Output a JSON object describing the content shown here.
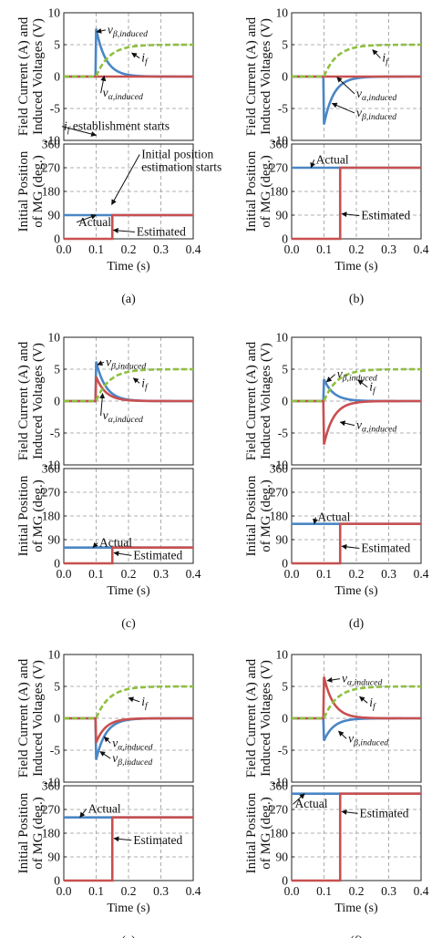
{
  "ylabel_top": [
    "Field Current (A) and",
    "Induced Voltages (V)"
  ],
  "ylabel_bottom": [
    "Initial Position",
    "of MG (deg.)"
  ],
  "xlabel": "Time (s)",
  "colors": {
    "blue": "#4a86c5",
    "red": "#c85050",
    "green": "#8fc040",
    "grid": "#999999",
    "axis": "#222222"
  },
  "chart_data": [
    {
      "label": "(a)",
      "voltage": {
        "type": "line",
        "xlim": [
          0,
          0.4
        ],
        "ylim": [
          -10,
          10
        ],
        "xticks": [
          "0.0",
          "0.1",
          "0.2",
          "0.3",
          "0.4"
        ],
        "yticks": [
          "10",
          "5",
          "0",
          "-5",
          "-10"
        ],
        "series": [
          {
            "name": "v_β,induced",
            "color": "blue",
            "peak": 7.5,
            "tau": 0.03
          },
          {
            "name": "v_α,induced",
            "color": "red",
            "peak": 0,
            "tau": 0.03
          },
          {
            "name": "i_f",
            "color": "green",
            "final": 5,
            "tau": 0.04
          }
        ],
        "annotations": [
          {
            "text": "v",
            "sub": "β,induced",
            "ax": 0.101,
            "ay": 7.0,
            "tx": 0.135,
            "ty": 7.3
          },
          {
            "text": "i",
            "sub": "f",
            "ax": 0.21,
            "ay": 3.7,
            "tx": 0.24,
            "ty": 2.9
          },
          {
            "text": "v",
            "sub": "α,induced",
            "ax": 0.125,
            "ay": 0.1,
            "tx": 0.12,
            "ty": -2.6
          },
          {
            "text": "i",
            "sub": "f",
            "extra": " establishment starts",
            "ax": 0.1,
            "ay": -9.2,
            "tx": 0.0,
            "ty": -7.8
          }
        ]
      },
      "position": {
        "type": "line",
        "xlim": [
          0,
          0.4
        ],
        "ylim": [
          0,
          360
        ],
        "xticks": [
          "0.0",
          "0.1",
          "0.2",
          "0.3",
          "0.4"
        ],
        "yticks": [
          "360",
          "270",
          "180",
          "90",
          "0"
        ],
        "actual": 90,
        "estimated": 90,
        "estimation_start": 0.15,
        "annotations": [
          {
            "text": "Actual",
            "ax": 0.1,
            "ay": 90,
            "tx": 0.045,
            "ty": 63
          },
          {
            "text": "Estimated",
            "ax": 0.153,
            "ay": 33,
            "tx": 0.225,
            "ty": 26
          },
          {
            "text": "Initial position",
            "ax": 0.148,
            "ay": 130,
            "tx": 0.24,
            "ty": 320
          },
          {
            "text": "estimation starts",
            "tx": 0.24,
            "ty": 272
          }
        ]
      }
    },
    {
      "label": "(b)",
      "voltage": {
        "type": "line",
        "xlim": [
          0,
          0.4
        ],
        "ylim": [
          -10,
          10
        ],
        "xticks": [
          "0.0",
          "0.1",
          "0.2",
          "0.3",
          "0.4"
        ],
        "yticks": [
          "10",
          "5",
          "0",
          "-5",
          "-10"
        ],
        "series": [
          {
            "name": "v_β,induced",
            "color": "blue",
            "peak": -7.5,
            "tau": 0.03
          },
          {
            "name": "v_α,induced",
            "color": "red",
            "peak": 0,
            "tau": 0.03
          },
          {
            "name": "i_f",
            "color": "green",
            "final": 5,
            "tau": 0.04
          }
        ],
        "annotations": [
          {
            "text": "i",
            "sub": "f",
            "ax": 0.25,
            "ay": 4.2,
            "tx": 0.28,
            "ty": 2.9
          },
          {
            "text": "v",
            "sub": "α,induced",
            "ax": 0.14,
            "ay": -0.1,
            "tx": 0.2,
            "ty": -2.7
          },
          {
            "text": "v",
            "sub": "β,induced",
            "ax": 0.125,
            "ay": -4.2,
            "tx": 0.2,
            "ty": -5.7
          }
        ]
      },
      "position": {
        "type": "line",
        "xlim": [
          0,
          0.4
        ],
        "ylim": [
          0,
          360
        ],
        "xticks": [
          "0.0",
          "0.1",
          "0.2",
          "0.3",
          "0.4"
        ],
        "yticks": [
          "360",
          "270",
          "180",
          "90",
          "0"
        ],
        "actual": 270,
        "estimated": 270,
        "estimation_start": 0.15,
        "annotations": [
          {
            "text": "Actual",
            "ax": 0.06,
            "ay": 270,
            "tx": 0.075,
            "ty": 300
          },
          {
            "text": "Estimated",
            "ax": 0.155,
            "ay": 95,
            "tx": 0.215,
            "ty": 88
          }
        ]
      }
    },
    {
      "label": "(c)",
      "voltage": {
        "type": "line",
        "xlim": [
          0,
          0.4
        ],
        "ylim": [
          -10,
          10
        ],
        "xticks": [
          "0.0",
          "0.1",
          "0.2",
          "0.3",
          "0.4"
        ],
        "yticks": [
          "10",
          "5",
          "0",
          "-5",
          "-10"
        ],
        "series": [
          {
            "name": "v_β,induced",
            "color": "blue",
            "peak": 6.2,
            "tau": 0.03
          },
          {
            "name": "v_α,induced",
            "color": "red",
            "peak": 3.8,
            "tau": 0.03
          },
          {
            "name": "i_f",
            "color": "green",
            "final": 5,
            "tau": 0.04
          }
        ],
        "annotations": [
          {
            "text": "v",
            "sub": "β,induced",
            "ax": 0.104,
            "ay": 5.7,
            "tx": 0.13,
            "ty": 6.1
          },
          {
            "text": "i",
            "sub": "f",
            "ax": 0.215,
            "ay": 3.6,
            "tx": 0.24,
            "ty": 2.8
          },
          {
            "text": "v",
            "sub": "α,induced",
            "ax": 0.12,
            "ay": 1.2,
            "tx": 0.12,
            "ty": -2.3
          }
        ]
      },
      "position": {
        "type": "line",
        "xlim": [
          0,
          0.4
        ],
        "ylim": [
          0,
          360
        ],
        "xticks": [
          "0.0",
          "0.1",
          "0.2",
          "0.3",
          "0.4"
        ],
        "yticks": [
          "360",
          "270",
          "180",
          "90",
          "0"
        ],
        "actual": 60,
        "estimated": 60,
        "estimation_start": 0.15,
        "annotations": [
          {
            "text": "Actual",
            "ax": 0.09,
            "ay": 60,
            "tx": 0.11,
            "ty": 78
          },
          {
            "text": "Estimated",
            "ax": 0.155,
            "ay": 40,
            "tx": 0.215,
            "ty": 30
          }
        ]
      }
    },
    {
      "label": "(d)",
      "voltage": {
        "type": "line",
        "xlim": [
          0,
          0.4
        ],
        "ylim": [
          -10,
          10
        ],
        "xticks": [
          "0.0",
          "0.1",
          "0.2",
          "0.3",
          "0.4"
        ],
        "yticks": [
          "10",
          "5",
          "0",
          "-5",
          "-10"
        ],
        "series": [
          {
            "name": "v_β,induced",
            "color": "blue",
            "peak": 3.4,
            "tau": 0.03
          },
          {
            "name": "v_α,induced",
            "color": "red",
            "peak": -6.8,
            "tau": 0.03
          },
          {
            "name": "i_f",
            "color": "green",
            "final": 5,
            "tau": 0.04
          }
        ],
        "annotations": [
          {
            "text": "v",
            "sub": "β,induced",
            "ax": 0.108,
            "ay": 3.0,
            "tx": 0.14,
            "ty": 4.2
          },
          {
            "text": "i",
            "sub": "f",
            "ax": 0.205,
            "ay": 3.3,
            "tx": 0.24,
            "ty": 2.2
          },
          {
            "text": "v",
            "sub": "α,induced",
            "ax": 0.15,
            "ay": -3.3,
            "tx": 0.2,
            "ty": -3.8
          }
        ]
      },
      "position": {
        "type": "line",
        "xlim": [
          0,
          0.4
        ],
        "ylim": [
          0,
          360
        ],
        "xticks": [
          "0.0",
          "0.1",
          "0.2",
          "0.3",
          "0.4"
        ],
        "yticks": [
          "360",
          "270",
          "180",
          "90",
          "0"
        ],
        "actual": 150,
        "estimated": 150,
        "estimation_start": 0.15,
        "annotations": [
          {
            "text": "Actual",
            "ax": 0.07,
            "ay": 150,
            "tx": 0.08,
            "ty": 175
          },
          {
            "text": "Estimated",
            "ax": 0.155,
            "ay": 65,
            "tx": 0.215,
            "ty": 57
          }
        ]
      }
    },
    {
      "label": "(e)",
      "voltage": {
        "type": "line",
        "xlim": [
          0,
          0.4
        ],
        "ylim": [
          -10,
          10
        ],
        "xticks": [
          "0.0",
          "0.1",
          "0.2",
          "0.3",
          "0.4"
        ],
        "yticks": [
          "10",
          "5",
          "0",
          "-5",
          "-10"
        ],
        "series": [
          {
            "name": "v_β,induced",
            "color": "blue",
            "peak": -6.5,
            "tau": 0.03
          },
          {
            "name": "v_α,induced",
            "color": "red",
            "peak": -3.8,
            "tau": 0.03
          },
          {
            "name": "i_f",
            "color": "green",
            "final": 5,
            "tau": 0.04
          }
        ],
        "annotations": [
          {
            "text": "i",
            "sub": "f",
            "ax": 0.2,
            "ay": 3.2,
            "tx": 0.24,
            "ty": 2.6
          },
          {
            "text": "v",
            "sub": "α,induced",
            "ax": 0.125,
            "ay": -2.9,
            "tx": 0.15,
            "ty": -3.9
          },
          {
            "text": "v",
            "sub": "β,induced",
            "ax": 0.112,
            "ay": -5.2,
            "tx": 0.15,
            "ty": -6.3
          }
        ]
      },
      "position": {
        "type": "line",
        "xlim": [
          0,
          0.4
        ],
        "ylim": [
          0,
          360
        ],
        "xticks": [
          "0.0",
          "0.1",
          "0.2",
          "0.3",
          "0.4"
        ],
        "yticks": [
          "360",
          "270",
          "180",
          "90",
          "0"
        ],
        "actual": 240,
        "estimated": 240,
        "estimation_start": 0.15,
        "annotations": [
          {
            "text": "Actual",
            "ax": 0.05,
            "ay": 240,
            "tx": 0.075,
            "ty": 272
          },
          {
            "text": "Estimated",
            "ax": 0.155,
            "ay": 160,
            "tx": 0.215,
            "ty": 153
          }
        ]
      }
    },
    {
      "label": "(f)",
      "voltage": {
        "type": "line",
        "xlim": [
          0,
          0.4
        ],
        "ylim": [
          -10,
          10
        ],
        "xticks": [
          "0.0",
          "0.1",
          "0.2",
          "0.3",
          "0.4"
        ],
        "yticks": [
          "10",
          "5",
          "0",
          "-5",
          "-10"
        ],
        "series": [
          {
            "name": "v_β,induced",
            "color": "blue",
            "peak": -3.5,
            "tau": 0.03
          },
          {
            "name": "v_α,induced",
            "color": "red",
            "peak": 6.5,
            "tau": 0.03
          },
          {
            "name": "i_f",
            "color": "green",
            "final": 5,
            "tau": 0.04
          }
        ],
        "annotations": [
          {
            "text": "v",
            "sub": "α,induced",
            "ax": 0.11,
            "ay": 5.9,
            "tx": 0.155,
            "ty": 6.2
          },
          {
            "text": "i",
            "sub": "f",
            "ax": 0.21,
            "ay": 3.4,
            "tx": 0.24,
            "ty": 2.4
          },
          {
            "text": "v",
            "sub": "β,induced",
            "ax": 0.145,
            "ay": -2.0,
            "tx": 0.175,
            "ty": -3.2
          }
        ]
      },
      "position": {
        "type": "line",
        "xlim": [
          0,
          0.4
        ],
        "ylim": [
          0,
          360
        ],
        "xticks": [
          "0.0",
          "0.1",
          "0.2",
          "0.3",
          "0.4"
        ],
        "yticks": [
          "360",
          "270",
          "180",
          "90",
          "0"
        ],
        "actual": 330,
        "estimated": 330,
        "estimation_start": 0.15,
        "annotations": [
          {
            "text": "Actual",
            "ax": 0.04,
            "ay": 330,
            "tx": 0.01,
            "ty": 290
          },
          {
            "text": "Estimated",
            "ax": 0.155,
            "ay": 262,
            "tx": 0.21,
            "ty": 255
          }
        ]
      }
    }
  ]
}
